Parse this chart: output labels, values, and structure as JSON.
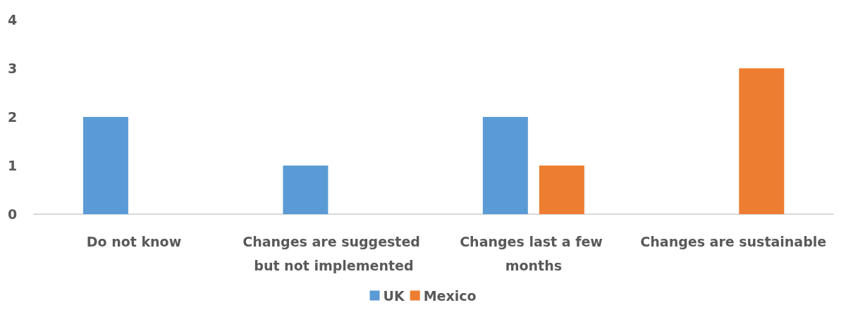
{
  "chart_data": {
    "type": "bar",
    "categories": [
      "Do not know",
      "Changes are suggested but not implemented",
      "Changes last a few months",
      "Changes are sustainable"
    ],
    "series": [
      {
        "name": "UK",
        "color": "#5b9bd5",
        "values": [
          2,
          1,
          2,
          0
        ]
      },
      {
        "name": "Mexico",
        "color": "#ed7d31",
        "values": [
          0,
          0,
          1,
          3
        ]
      }
    ],
    "ylim": [
      0,
      4
    ],
    "yticks": [
      0,
      1,
      2,
      3,
      4
    ],
    "grid": false,
    "legend": "bottom"
  }
}
